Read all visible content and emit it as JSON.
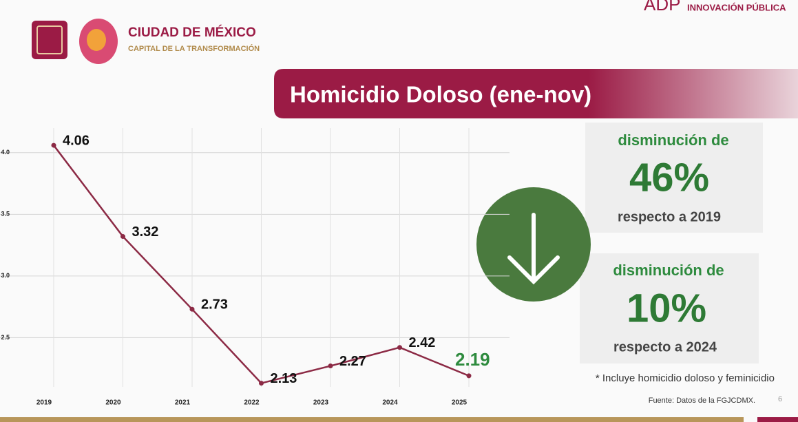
{
  "header": {
    "brand": "CIUDAD DE MÉXICO",
    "tagline": "CAPITAL DE LA TRANSFORMACIÓN",
    "agency": "INNOVACIÓN PÚBLICA"
  },
  "chart_data": {
    "type": "line",
    "title": "Homicidio Doloso (ene-nov)",
    "categories": [
      "2019",
      "2020",
      "2021",
      "2022",
      "2023",
      "2024",
      "2025"
    ],
    "series": [
      {
        "name": "Homicidio Doloso",
        "color": "#8c2a45",
        "values": [
          4.06,
          3.32,
          2.73,
          2.13,
          2.27,
          2.42,
          2.19
        ]
      }
    ],
    "value_label_colors": [
      "#111111",
      "#111111",
      "#111111",
      "#111111",
      "#111111",
      "#111111",
      "#2e8b3e"
    ],
    "ylim": [
      2.1,
      4.2
    ],
    "yticks": [
      {
        "value": 2.5,
        "label": "2.5"
      },
      {
        "value": 3,
        "label": "3.0"
      },
      {
        "value": 3.5,
        "label": "3.5"
      },
      {
        "value": 4,
        "label": "4.0"
      }
    ],
    "grid": true
  },
  "highlights": [
    {
      "lead": "disminución de",
      "value": "46%",
      "reference": "respecto a 2019"
    },
    {
      "lead": "disminución de",
      "value": "10%",
      "reference": "respecto a 2024"
    }
  ],
  "note": "* Incluye homicidio doloso y feminicidio",
  "source": "Fuente: Datos de la FGJCDMX.",
  "page_number": "6"
}
